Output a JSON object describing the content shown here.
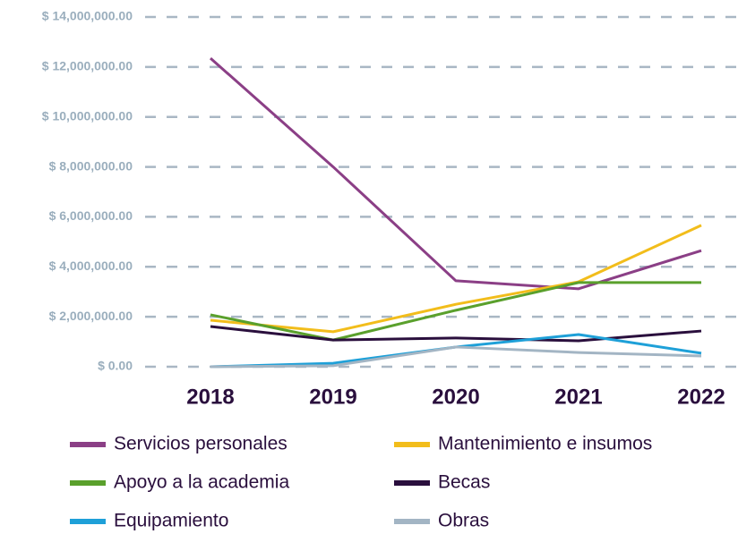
{
  "chart_data": {
    "type": "line",
    "categories": [
      "2018",
      "2019",
      "2020",
      "2021",
      "2022"
    ],
    "series": [
      {
        "name": "Servicios personales",
        "color": "#8b3f86",
        "values": [
          12350000,
          8000000,
          3440000,
          3120000,
          4650000
        ]
      },
      {
        "name": "Mantenimiento e insumos",
        "color": "#f2bd1b",
        "values": [
          1860000,
          1400000,
          2500000,
          3400000,
          5660000
        ]
      },
      {
        "name": "Apoyo a la academia",
        "color": "#5aa02c",
        "values": [
          2080000,
          1070000,
          2260000,
          3370000,
          3370000
        ]
      },
      {
        "name": "Becas",
        "color": "#2a0f3d",
        "values": [
          1610000,
          1070000,
          1150000,
          1040000,
          1430000
        ]
      },
      {
        "name": "Equipamiento",
        "color": "#1ea0d8",
        "values": [
          0,
          140000,
          790000,
          1290000,
          540000
        ]
      },
      {
        "name": "Obras",
        "color": "#a3b5c4",
        "values": [
          0,
          40000,
          790000,
          570000,
          430000
        ]
      }
    ],
    "ylim": [
      0,
      14000000
    ],
    "yticks": [
      {
        "value": 0,
        "label": "$ 0.00"
      },
      {
        "value": 2000000,
        "label": "$ 2,000,000.00"
      },
      {
        "value": 4000000,
        "label": "$ 4,000,000.00"
      },
      {
        "value": 6000000,
        "label": "$ 6,000,000.00"
      },
      {
        "value": 8000000,
        "label": "$ 8,000,000.00"
      },
      {
        "value": 10000000,
        "label": "$ 10,000,000.00"
      },
      {
        "value": 12000000,
        "label": "$ 12,000,000.00"
      },
      {
        "value": 14000000,
        "label": "$ 14,000,000.00"
      }
    ],
    "grid": true,
    "legend": "bottom"
  }
}
